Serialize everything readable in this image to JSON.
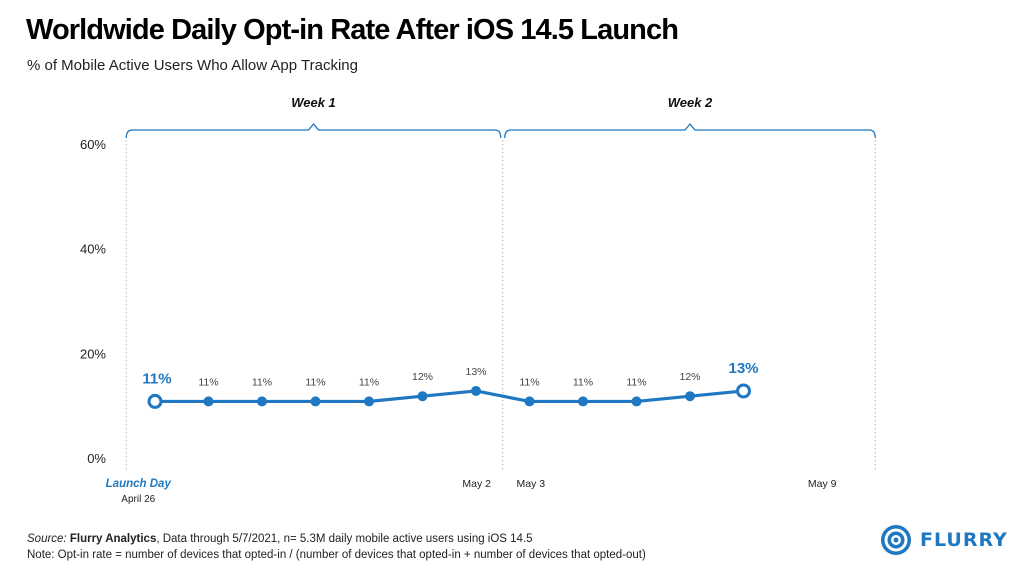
{
  "header": {
    "title": "Worldwide Daily Opt-in Rate After iOS 14.5 Launch",
    "subtitle": "% of Mobile Active Users Who Allow App Tracking"
  },
  "chart_data": {
    "type": "line",
    "title": "Worldwide Daily Opt-in Rate After iOS 14.5 Launch",
    "subtitle": "% of Mobile Active Users Who Allow App Tracking",
    "ylim": [
      0,
      60
    ],
    "yticks": [
      0,
      20,
      40,
      60
    ],
    "ytick_labels": [
      "0%",
      "20%",
      "40%",
      "60%"
    ],
    "grid": false,
    "series": [
      {
        "name": "Opt-in rate",
        "color": "#1f78c1",
        "x": [
          0,
          1,
          2,
          3,
          4,
          5,
          6,
          7,
          8,
          9,
          10,
          11
        ],
        "values": [
          11,
          11,
          11,
          11,
          11,
          12,
          13,
          11,
          11,
          11,
          12,
          13
        ],
        "labels": [
          "11%",
          "11%",
          "11%",
          "11%",
          "11%",
          "12%",
          "13%",
          "11%",
          "11%",
          "11%",
          "12%",
          "13%"
        ],
        "highlight_indices": [
          0,
          11
        ]
      }
    ],
    "x_labels": [
      {
        "x": -0.5,
        "text": "Launch Day",
        "sub": "April 26",
        "highlight": true
      },
      {
        "x": 6,
        "text": "May 2"
      },
      {
        "x": 7,
        "text": "May 3"
      },
      {
        "x": 13,
        "text": "May 9"
      }
    ],
    "weeks": [
      {
        "label": "Week 1",
        "start": -0.5,
        "end": 6.5
      },
      {
        "label": "Week 2",
        "start": 6.5,
        "end": 13.5
      }
    ]
  },
  "footer": {
    "source_label": "Source:",
    "source_name": "Flurry Analytics",
    "source_rest": ", Data through 5/7/2021, n= 5.3M daily mobile active users using iOS 14.5",
    "note": "Note: Opt-in rate = number of devices that opted-in / (number of devices that opted-in + number of devices that opted-out)"
  },
  "brand": {
    "name": "FLURRY",
    "color": "#1f78c1"
  }
}
